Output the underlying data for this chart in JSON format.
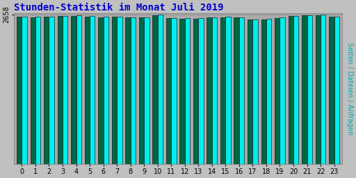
{
  "title": "Stunden-Statistik im Monat Juli 2019",
  "title_color": "#0000cc",
  "title_fontsize": 10,
  "ylabel_right": "Seiten / Dateien / Anfragen",
  "ylabel_right_color": "#00aaaa",
  "categories": [
    0,
    1,
    2,
    3,
    4,
    5,
    6,
    7,
    8,
    9,
    10,
    11,
    12,
    13,
    14,
    15,
    16,
    17,
    18,
    19,
    20,
    21,
    22,
    23
  ],
  "values_cyan": [
    2628,
    2618,
    2622,
    2635,
    2642,
    2630,
    2618,
    2625,
    2610,
    2614,
    2656,
    2598,
    2594,
    2592,
    2614,
    2618,
    2610,
    2572,
    2582,
    2604,
    2638,
    2652,
    2656,
    2626
  ],
  "values_dark": [
    2625,
    2615,
    2619,
    2632,
    2639,
    2627,
    2615,
    2622,
    2607,
    2611,
    2653,
    2595,
    2591,
    2589,
    2611,
    2615,
    2607,
    2569,
    2579,
    2601,
    2635,
    2649,
    2653,
    2623
  ],
  "bar_color_cyan": "#00eeee",
  "bar_color_dark": "#006644",
  "bar_width": 0.38,
  "background_color": "#c0c0c0",
  "plot_bg_color": "#aaaaaa",
  "ytick_label": "2658",
  "ytick_pos": 2658,
  "ylim_min": 0,
  "ylim_max": 2680,
  "figsize": [
    5.12,
    2.56
  ],
  "dpi": 100
}
